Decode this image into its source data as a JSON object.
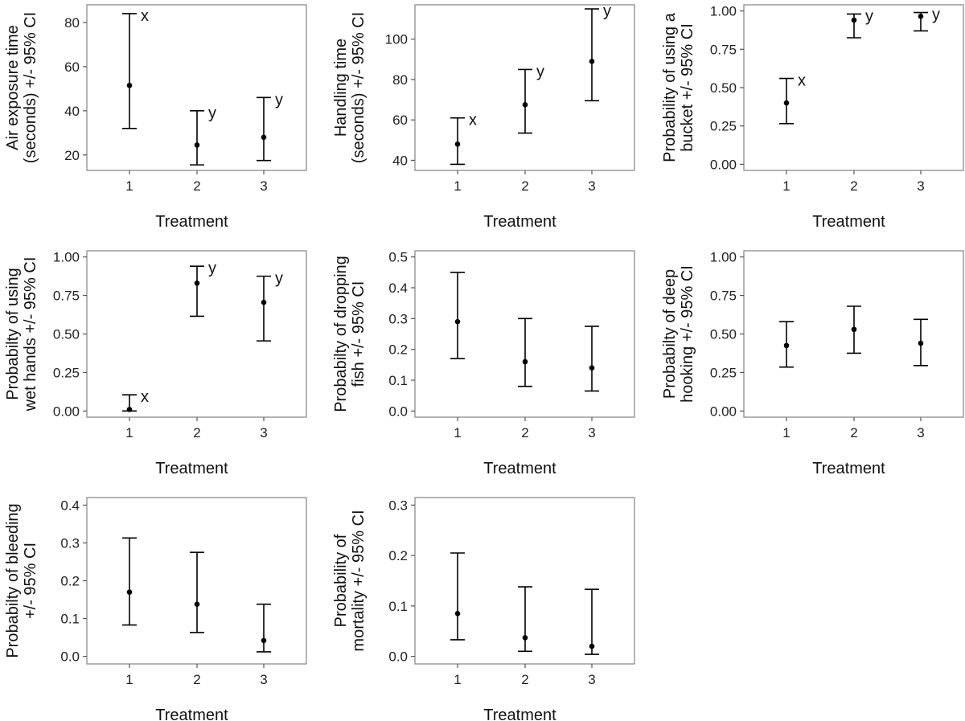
{
  "chart_data": [
    {
      "type": "errorbar",
      "xlabel": "Treatment",
      "ylabel": [
        "Air exposure time",
        "(seconds) +/- 95% CI"
      ],
      "categories": [
        "1",
        "2",
        "3"
      ],
      "ylim": [
        13,
        88
      ],
      "yticks": [
        20,
        40,
        60,
        80
      ],
      "ytick_labels": [
        "20",
        "40",
        "60",
        "80"
      ],
      "values": [
        51.5,
        24.5,
        28
      ],
      "lower": [
        32,
        15.5,
        17.5
      ],
      "upper": [
        84,
        40,
        46
      ],
      "letters": [
        "x",
        "y",
        "y"
      ]
    },
    {
      "type": "errorbar",
      "xlabel": "Treatment",
      "ylabel": [
        "Handling time",
        "(seconds) +/- 95% CI"
      ],
      "categories": [
        "1",
        "2",
        "3"
      ],
      "ylim": [
        35,
        117
      ],
      "yticks": [
        40,
        60,
        80,
        100
      ],
      "ytick_labels": [
        "40",
        "60",
        "80",
        "100"
      ],
      "values": [
        48,
        67.5,
        89
      ],
      "lower": [
        38,
        53.5,
        69.5
      ],
      "upper": [
        61,
        85,
        115
      ],
      "letters": [
        "x",
        "y",
        "y"
      ]
    },
    {
      "type": "errorbar",
      "xlabel": "Treatment",
      "ylabel": [
        "Probability of using a",
        "bucket +/- 95% CI"
      ],
      "categories": [
        "1",
        "2",
        "3"
      ],
      "ylim": [
        -0.04,
        1.04
      ],
      "yticks": [
        0,
        0.25,
        0.5,
        0.75,
        1
      ],
      "ytick_labels": [
        "0.00",
        "0.25",
        "0.50",
        "0.75",
        "1.00"
      ],
      "values": [
        0.4,
        0.94,
        0.965
      ],
      "lower": [
        0.265,
        0.825,
        0.87
      ],
      "upper": [
        0.56,
        0.98,
        0.99
      ],
      "letters": [
        "x",
        "y",
        "y"
      ]
    },
    {
      "type": "errorbar",
      "xlabel": "Treatment",
      "ylabel": [
        "Probabilty of using",
        "wet hands +/- 95% CI"
      ],
      "categories": [
        "1",
        "2",
        "3"
      ],
      "ylim": [
        -0.04,
        1.04
      ],
      "yticks": [
        0,
        0.25,
        0.5,
        0.75,
        1
      ],
      "ytick_labels": [
        "0.00",
        "0.25",
        "0.50",
        "0.75",
        "1.00"
      ],
      "values": [
        0.01,
        0.83,
        0.705
      ],
      "lower": [
        0.0,
        0.615,
        0.455
      ],
      "upper": [
        0.105,
        0.94,
        0.875
      ],
      "letters": [
        "x",
        "y",
        "y"
      ]
    },
    {
      "type": "errorbar",
      "xlabel": "Treatment",
      "ylabel": [
        "Probabilty of dropping",
        "fish +/- 95% CI"
      ],
      "categories": [
        "1",
        "2",
        "3"
      ],
      "ylim": [
        -0.02,
        0.52
      ],
      "yticks": [
        0,
        0.1,
        0.2,
        0.3,
        0.4,
        0.5
      ],
      "ytick_labels": [
        "0.0",
        "0.1",
        "0.2",
        "0.3",
        "0.4",
        "0.5"
      ],
      "values": [
        0.29,
        0.16,
        0.14
      ],
      "lower": [
        0.17,
        0.08,
        0.065
      ],
      "upper": [
        0.45,
        0.3,
        0.275
      ],
      "letters": [
        "",
        "",
        ""
      ]
    },
    {
      "type": "errorbar",
      "xlabel": "Treatment",
      "ylabel": [
        "Probabilty of deep",
        "hooking +/- 95% CI"
      ],
      "categories": [
        "1",
        "2",
        "3"
      ],
      "ylim": [
        -0.04,
        1.04
      ],
      "yticks": [
        0,
        0.25,
        0.5,
        0.75,
        1
      ],
      "ytick_labels": [
        "0.00",
        "0.25",
        "0.50",
        "0.75",
        "1.00"
      ],
      "values": [
        0.425,
        0.53,
        0.44
      ],
      "lower": [
        0.285,
        0.375,
        0.295
      ],
      "upper": [
        0.58,
        0.68,
        0.595
      ],
      "letters": [
        "",
        "",
        ""
      ]
    },
    {
      "type": "errorbar",
      "xlabel": "Treatment",
      "ylabel": [
        "Probabilty of bleeding",
        "+/- 95% CI"
      ],
      "categories": [
        "1",
        "2",
        "3"
      ],
      "ylim": [
        -0.02,
        0.42
      ],
      "yticks": [
        0,
        0.1,
        0.2,
        0.3,
        0.4
      ],
      "ytick_labels": [
        "0.0",
        "0.1",
        "0.2",
        "0.3",
        "0.4"
      ],
      "values": [
        0.17,
        0.138,
        0.042
      ],
      "lower": [
        0.083,
        0.063,
        0.012
      ],
      "upper": [
        0.313,
        0.275,
        0.138
      ],
      "letters": [
        "",
        "",
        ""
      ]
    },
    {
      "type": "errorbar",
      "xlabel": "Treatment",
      "ylabel": [
        "Probability of",
        "mortality +/- 95% CI"
      ],
      "categories": [
        "1",
        "2",
        "3"
      ],
      "ylim": [
        -0.015,
        0.315
      ],
      "yticks": [
        0,
        0.1,
        0.2,
        0.3
      ],
      "ytick_labels": [
        "0.0",
        "0.1",
        "0.2",
        "0.3"
      ],
      "values": [
        0.085,
        0.037,
        0.02
      ],
      "lower": [
        0.033,
        0.01,
        0.004
      ],
      "upper": [
        0.205,
        0.138,
        0.133
      ],
      "letters": [
        "",
        "",
        ""
      ]
    }
  ]
}
